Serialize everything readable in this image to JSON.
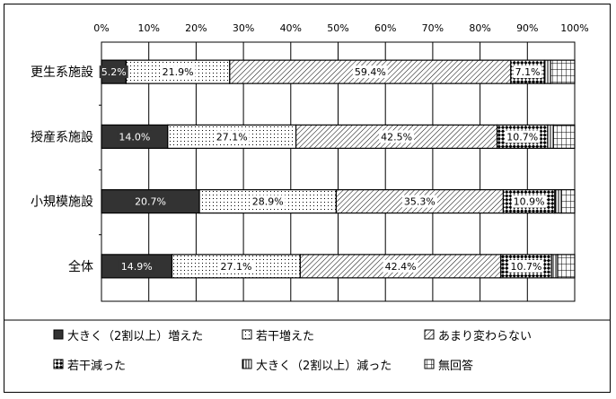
{
  "chart_data": {
    "type": "bar",
    "orientation": "horizontal",
    "stacked": "percent",
    "categories": [
      "更生系施設",
      "授産系施設",
      "小規模施設",
      "全体"
    ],
    "series": [
      {
        "name": "大きく（2割以上）増えた",
        "values": [
          5.2,
          14.0,
          20.7,
          14.9
        ],
        "labels": [
          "5.2%",
          "14.0%",
          "20.7%",
          "14.9%"
        ],
        "pattern": "dark",
        "color": "#333333"
      },
      {
        "name": "若干増えた",
        "values": [
          21.9,
          27.1,
          28.9,
          27.1
        ],
        "labels": [
          "21.9%",
          "27.1%",
          "28.9%",
          "27.1%"
        ],
        "pattern": "dots",
        "color": "#ffffff"
      },
      {
        "name": "あまり変わらない",
        "values": [
          59.4,
          42.5,
          35.3,
          42.4
        ],
        "labels": [
          "59.4%",
          "42.5%",
          "35.3%",
          "42.4%"
        ],
        "pattern": "diagonal",
        "color": "#ffffff"
      },
      {
        "name": "若干減った",
        "values": [
          7.1,
          10.7,
          10.9,
          10.7
        ],
        "labels": [
          "7.1%",
          "10.7%",
          "10.9%",
          "10.7%"
        ],
        "pattern": "checker",
        "color": "#ffffff"
      },
      {
        "name": "大きく（2割以上）減った",
        "values": [
          1.3,
          1.2,
          1.4,
          1.3
        ],
        "labels": [
          "",
          "",
          "",
          ""
        ],
        "pattern": "vertical",
        "color": "#ffffff"
      },
      {
        "name": "無回答",
        "values": [
          5.1,
          4.5,
          2.8,
          3.6
        ],
        "labels": [
          "",
          "",
          "",
          ""
        ],
        "pattern": "grid",
        "color": "#ffffff"
      }
    ],
    "x_ticks": [
      "0%",
      "10%",
      "20%",
      "30%",
      "40%",
      "50%",
      "60%",
      "70%",
      "80%",
      "90%",
      "100%"
    ],
    "xlim": [
      0,
      100
    ],
    "grid": true,
    "legend_position": "bottom"
  }
}
